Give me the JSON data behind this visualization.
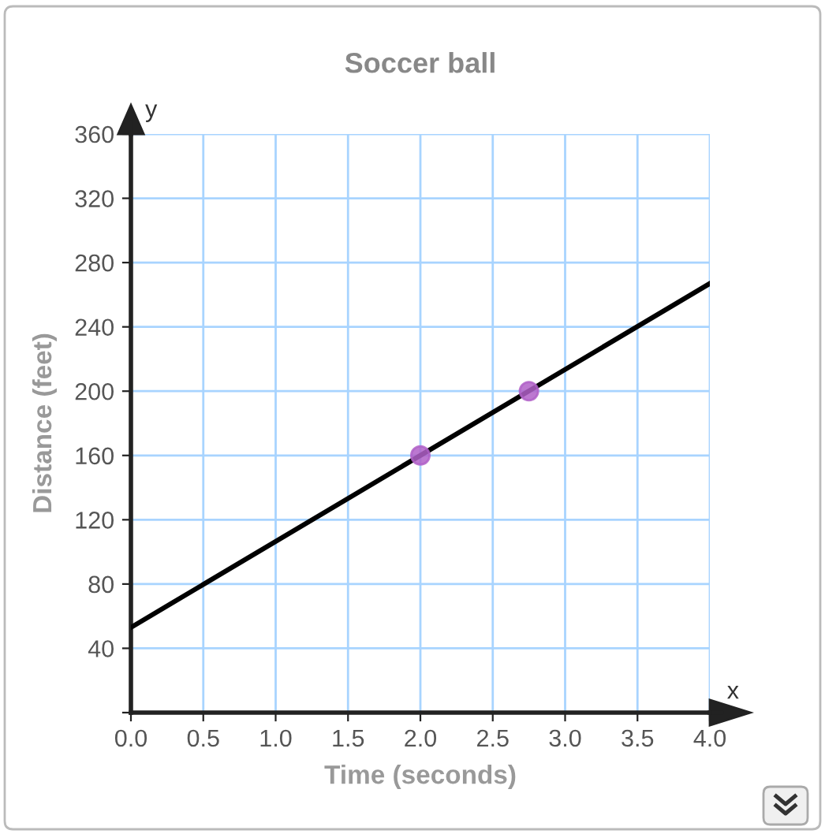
{
  "chart_data": {
    "type": "line",
    "title": "Soccer ball",
    "xlabel": "Time (seconds)",
    "ylabel": "Distance (feet)",
    "annotations": [
      "x",
      "y"
    ],
    "series": [
      {
        "color": "#000000",
        "x": [
          0,
          4
        ],
        "values": [
          53,
          267
        ],
        "marker": "none"
      },
      {
        "type": "scatter",
        "color": "#b060c8",
        "x": [
          2,
          2.75
        ],
        "values": [
          160,
          200
        ],
        "marker": "circle"
      }
    ],
    "xlim": [
      0,
      4
    ],
    "xticks": [
      {
        "value": 0,
        "label": "0.0"
      },
      0.5,
      {
        "value": 1,
        "label": "1.0"
      },
      1.5,
      {
        "value": 2,
        "label": "2.0"
      },
      2.5,
      {
        "value": 3,
        "label": "3.0"
      },
      3.5,
      {
        "value": 4,
        "label": "4.0"
      }
    ],
    "ylim": [
      0,
      360
    ],
    "yticks": [
      {
        "value": 0,
        "label": null
      },
      40,
      80,
      120,
      160,
      200,
      240,
      280,
      320,
      360
    ],
    "grid": true
  }
}
